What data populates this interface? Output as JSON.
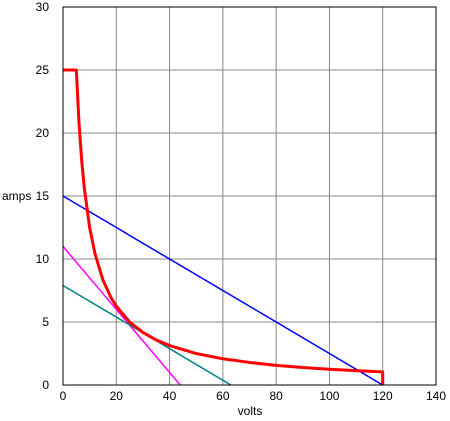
{
  "chart_data": {
    "type": "line",
    "xlabel": "volts",
    "ylabel": "amps",
    "xlim": [
      0,
      140
    ],
    "ylim": [
      0,
      30
    ],
    "x_ticks": [
      0,
      20,
      40,
      60,
      80,
      100,
      120,
      140
    ],
    "y_ticks": [
      0,
      5,
      10,
      15,
      20,
      25,
      30
    ],
    "grid": true,
    "legend": "none",
    "series": [
      {
        "color": "#ff0000",
        "width": 3,
        "x": [
          0,
          5,
          5,
          6,
          7,
          8,
          10,
          12,
          15,
          18,
          20,
          25,
          30,
          35,
          40,
          50,
          60,
          70,
          80,
          90,
          100,
          110,
          120,
          120
        ],
        "y": [
          25,
          25,
          25,
          20.83,
          17.86,
          15.63,
          12.5,
          10.42,
          8.33,
          6.94,
          6.25,
          5.0,
          4.17,
          3.57,
          3.13,
          2.5,
          2.08,
          1.79,
          1.56,
          1.39,
          1.25,
          1.14,
          1.04,
          0
        ]
      },
      {
        "color": "#0000ff",
        "width": 1.5,
        "x": [
          0,
          120
        ],
        "y": [
          15,
          0
        ]
      },
      {
        "color": "#ff00ff",
        "width": 1.5,
        "x": [
          0,
          44
        ],
        "y": [
          11,
          0
        ]
      },
      {
        "color": "#008080",
        "width": 1.5,
        "x": [
          0,
          63
        ],
        "y": [
          7.9,
          0
        ]
      }
    ]
  }
}
